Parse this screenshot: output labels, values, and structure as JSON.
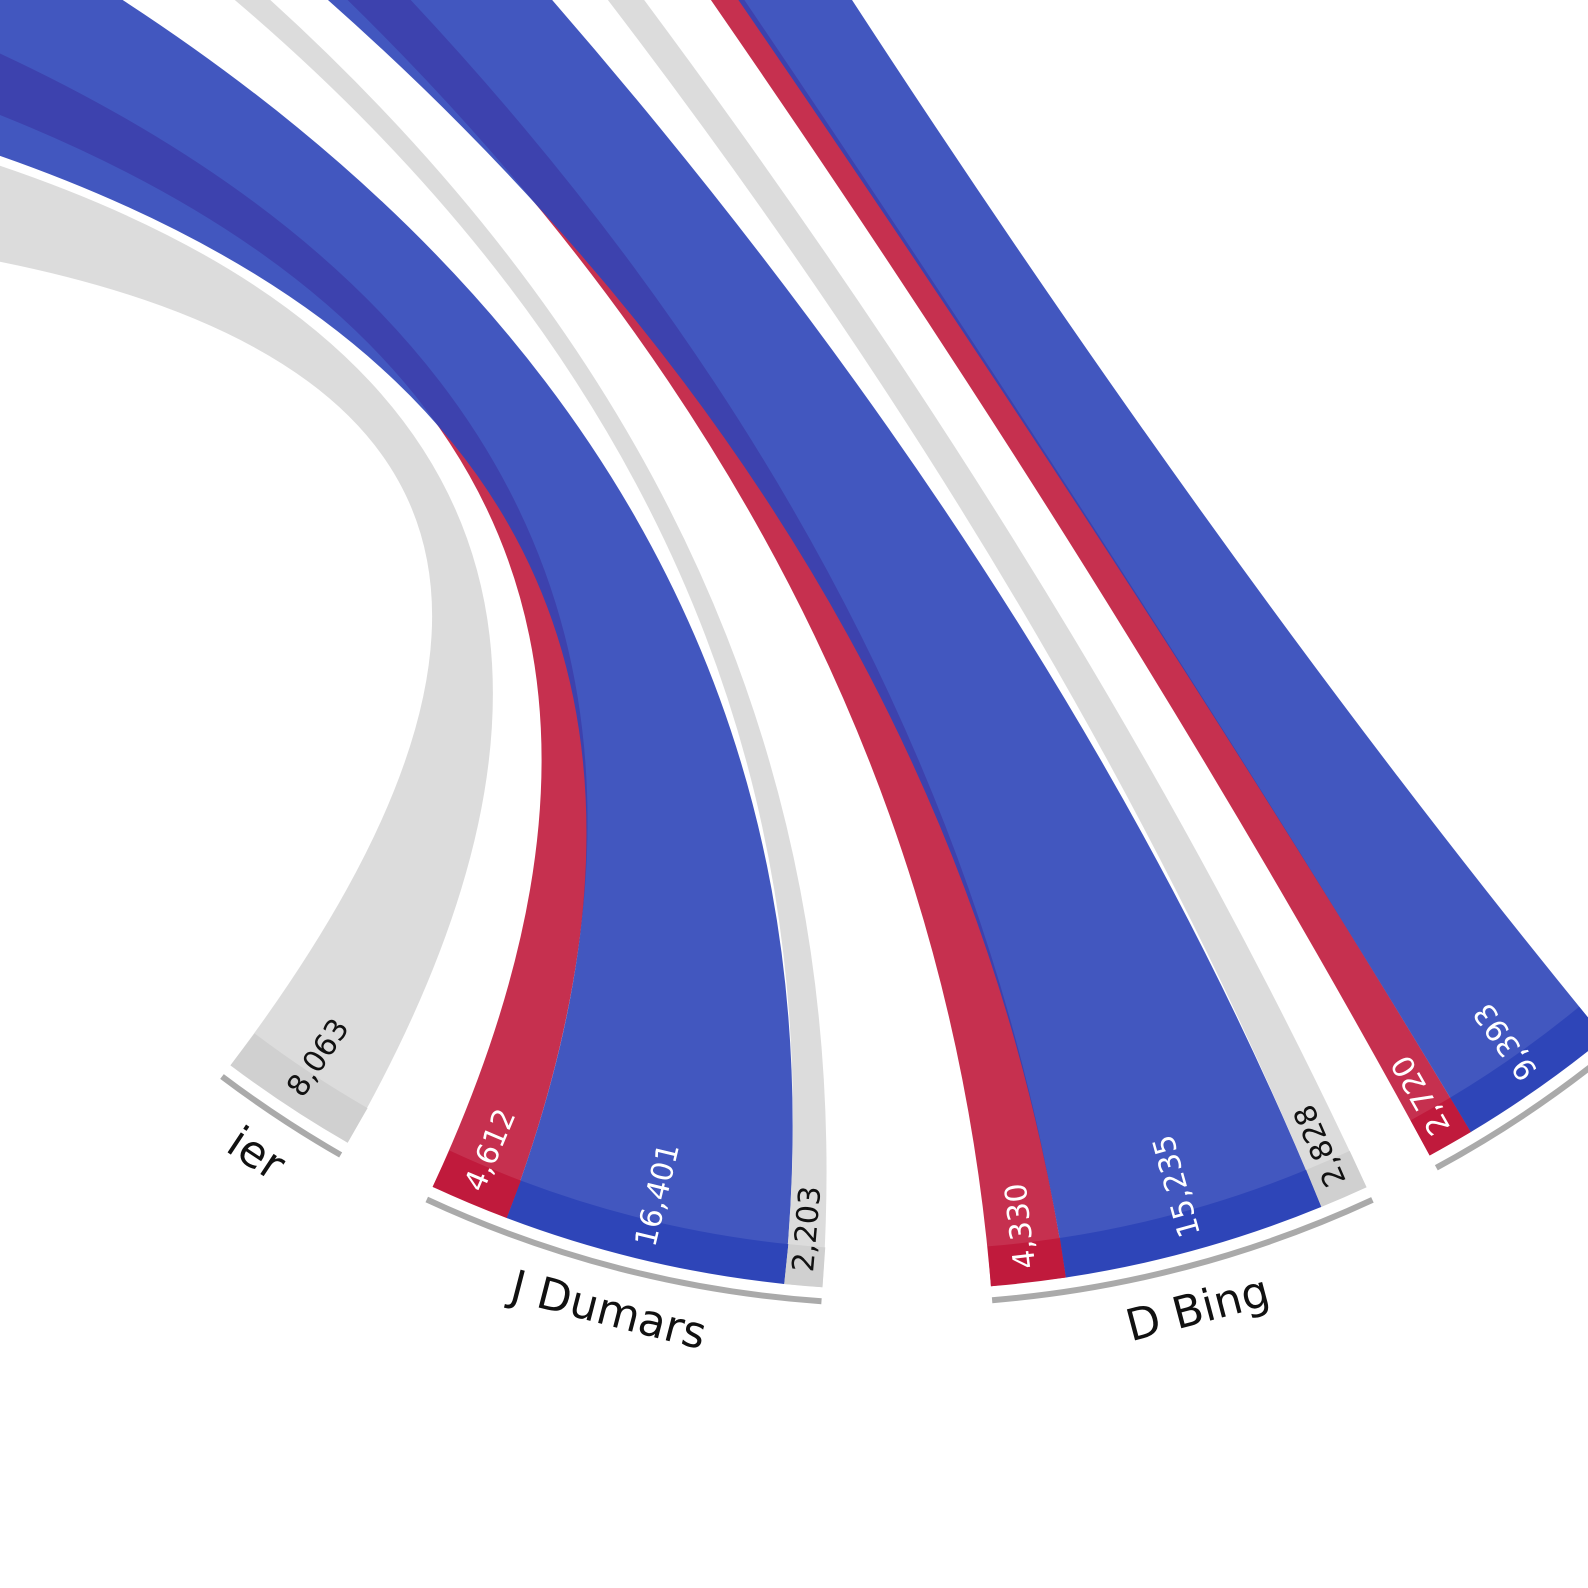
{
  "chart_data": {
    "type": "chord",
    "groups": [
      {
        "label": "ier",
        "values": [
          8063
        ],
        "value_labels": [
          "8,063"
        ],
        "colors": [
          "#d0d0d0"
        ]
      },
      {
        "label": "J Dumars",
        "values": [
          4612,
          16401,
          2203
        ],
        "value_labels": [
          "4,612",
          "16,401",
          "2,203"
        ],
        "colors": [
          "#c01a3c",
          "#2e45b8",
          "#d0d0d0"
        ]
      },
      {
        "label": "D Bing",
        "values": [
          4330,
          15235,
          2828
        ],
        "value_labels": [
          "4,330",
          "15,235",
          "2,828"
        ],
        "colors": [
          "#c01a3c",
          "#2e45b8",
          "#d0d0d0"
        ]
      },
      {
        "values": [
          2720,
          9393
        ],
        "value_labels": [
          "2,720",
          "9,393"
        ],
        "colors": [
          "#c01a3c",
          "#2e45b8"
        ]
      }
    ]
  }
}
